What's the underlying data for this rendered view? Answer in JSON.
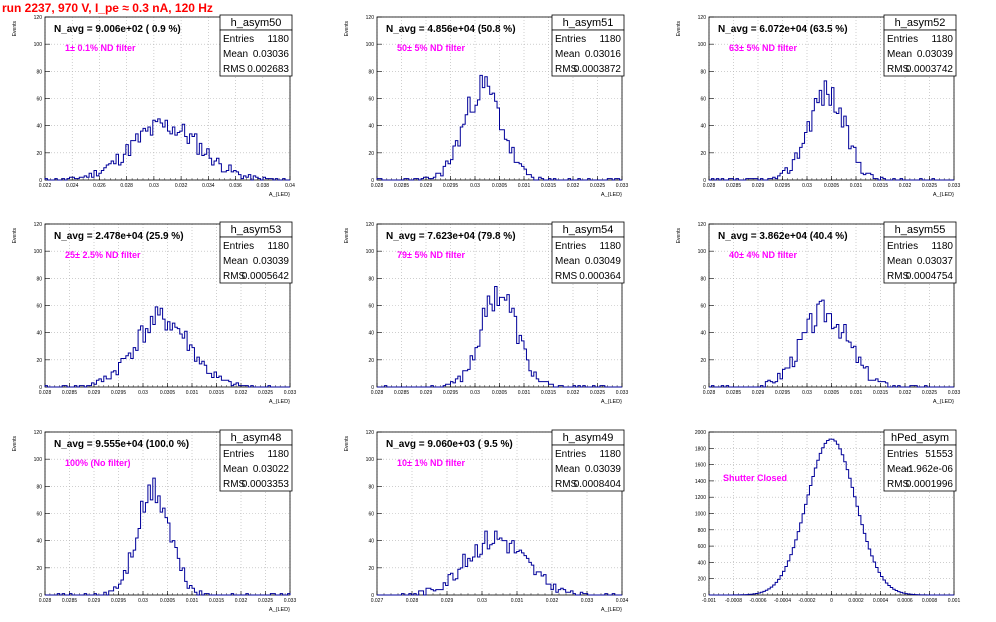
{
  "page": {
    "title": "run 2237,   970 V, I_pe ≈ 0.3 nA, 120 Hz"
  },
  "colors": {
    "histogram_line": "#000099",
    "title_text": "#ff0000",
    "annotation_text": "#ff00ff",
    "grid": "#b0b0b0",
    "frame": "#000000"
  },
  "chart_data": [
    {
      "type": "bar",
      "name": "h_asym50",
      "navg": "N_avg = 9.006e+02 ( 0.9 %)",
      "filter": "1± 0.1% ND filter",
      "ylabel": "Events",
      "xlabel": "A_{LED}",
      "stats": {
        "Entries": "1180",
        "Mean": "0.03036",
        "RMS": "0.002683"
      },
      "xlim": [
        0.021,
        0.04
      ],
      "ylim": [
        0,
        120
      ],
      "xticks": [
        "0.022",
        "0.024",
        "0.026",
        "0.028",
        "0.03",
        "0.032",
        "0.034",
        "0.036",
        "0.038",
        "0.04"
      ],
      "yticks": [
        "0",
        "20",
        "40",
        "60",
        "80",
        "100",
        "120"
      ],
      "mean": 0.03036,
      "rms": 0.002683,
      "peak": 40,
      "bins": 100,
      "seed": 11
    },
    {
      "type": "bar",
      "name": "h_asym51",
      "navg": "N_avg = 4.856e+04 (50.8 %)",
      "filter": "50± 5% ND filter",
      "ylabel": "Events",
      "xlabel": "A_{LED}",
      "stats": {
        "Entries": "1180",
        "Mean": "0.03016",
        "RMS": "0.0003872"
      },
      "xlim": [
        0.028,
        0.033
      ],
      "ylim": [
        0,
        120
      ],
      "xticks": [
        "0.028",
        "0.0285",
        "0.029",
        "0.0295",
        "0.03",
        "0.0305",
        "0.031",
        "0.0315",
        "0.032",
        "0.0325",
        "0.033"
      ],
      "yticks": [
        "0",
        "20",
        "40",
        "60",
        "80",
        "100",
        "120"
      ],
      "mean": 0.03016,
      "rms": 0.0003872,
      "peak": 68,
      "bins": 100,
      "seed": 23
    },
    {
      "type": "bar",
      "name": "h_asym52",
      "navg": "N_avg = 6.072e+04 (63.5 %)",
      "filter": "63± 5% ND filter",
      "ylabel": "Events",
      "xlabel": "A_{LED}",
      "stats": {
        "Entries": "1180",
        "Mean": "0.03039",
        "RMS": "0.0003742"
      },
      "xlim": [
        0.028,
        0.033
      ],
      "ylim": [
        0,
        120
      ],
      "xticks": [
        "0.028",
        "0.0285",
        "0.029",
        "0.0295",
        "0.03",
        "0.0305",
        "0.031",
        "0.0315",
        "0.032",
        "0.0325",
        "0.033"
      ],
      "yticks": [
        "0",
        "20",
        "40",
        "60",
        "80",
        "100",
        "120"
      ],
      "mean": 0.03039,
      "rms": 0.0003742,
      "peak": 65,
      "bins": 100,
      "seed": 37
    },
    {
      "type": "bar",
      "name": "h_asym53",
      "navg": "N_avg = 2.478e+04 (25.9 %)",
      "filter": "25± 2.5% ND filter",
      "ylabel": "Events",
      "xlabel": "A_{LED}",
      "stats": {
        "Entries": "1180",
        "Mean": "0.03039",
        "RMS": "0.0005642"
      },
      "xlim": [
        0.028,
        0.033
      ],
      "ylim": [
        0,
        120
      ],
      "xticks": [
        "0.028",
        "0.0285",
        "0.029",
        "0.0295",
        "0.03",
        "0.0305",
        "0.031",
        "0.0315",
        "0.032",
        "0.0325",
        "0.033"
      ],
      "yticks": [
        "0",
        "20",
        "40",
        "60",
        "80",
        "100",
        "120"
      ],
      "mean": 0.03039,
      "rms": 0.0005642,
      "peak": 50,
      "bins": 100,
      "seed": 41
    },
    {
      "type": "bar",
      "name": "h_asym54",
      "navg": "N_avg = 7.623e+04 (79.8 %)",
      "filter": "79± 5% ND filter",
      "ylabel": "Events",
      "xlabel": "A_{LED}",
      "stats": {
        "Entries": "1180",
        "Mean": "0.03049",
        "RMS": "0.000364"
      },
      "xlim": [
        0.028,
        0.033
      ],
      "ylim": [
        0,
        120
      ],
      "xticks": [
        "0.028",
        "0.0285",
        "0.029",
        "0.0295",
        "0.03",
        "0.0305",
        "0.031",
        "0.0315",
        "0.032",
        "0.0325",
        "0.033"
      ],
      "yticks": [
        "0",
        "20",
        "40",
        "60",
        "80",
        "100",
        "120"
      ],
      "mean": 0.03049,
      "rms": 0.000364,
      "peak": 70,
      "bins": 100,
      "seed": 53
    },
    {
      "type": "bar",
      "name": "h_asym55",
      "navg": "N_avg = 3.862e+04 (40.4 %)",
      "filter": "40± 4% ND filter",
      "ylabel": "Events",
      "xlabel": "A_{LED}",
      "stats": {
        "Entries": "1180",
        "Mean": "0.03037",
        "RMS": "0.0004754"
      },
      "xlim": [
        0.028,
        0.033
      ],
      "ylim": [
        0,
        120
      ],
      "xticks": [
        "0.028",
        "0.0285",
        "0.029",
        "0.0295",
        "0.03",
        "0.0305",
        "0.031",
        "0.0315",
        "0.032",
        "0.0325",
        "0.033"
      ],
      "yticks": [
        "0",
        "20",
        "40",
        "60",
        "80",
        "100",
        "120"
      ],
      "mean": 0.03037,
      "rms": 0.0004754,
      "peak": 55,
      "bins": 100,
      "seed": 67
    },
    {
      "type": "bar",
      "name": "h_asym48",
      "navg": "N_avg = 9.555e+04 (100.0 %)",
      "filter": "100% (No filter)",
      "ylabel": "Events",
      "xlabel": "A_{LED}",
      "stats": {
        "Entries": "1180",
        "Mean": "0.03022",
        "RMS": "0.0003353"
      },
      "xlim": [
        0.028,
        0.033
      ],
      "ylim": [
        0,
        120
      ],
      "xticks": [
        "0.028",
        "0.0285",
        "0.029",
        "0.0295",
        "0.03",
        "0.0305",
        "0.031",
        "0.0315",
        "0.032",
        "0.0325",
        "0.033"
      ],
      "yticks": [
        "0",
        "20",
        "40",
        "60",
        "80",
        "100",
        "120"
      ],
      "mean": 0.03022,
      "rms": 0.0003353,
      "peak": 76,
      "bins": 100,
      "seed": 71
    },
    {
      "type": "bar",
      "name": "h_asym49",
      "navg": "N_avg = 9.060e+03 ( 9.5 %)",
      "filter": "10± 1% ND filter",
      "ylabel": "Events",
      "xlabel": "A_{LED}",
      "stats": {
        "Entries": "1180",
        "Mean": "0.03039",
        "RMS": "0.0008404"
      },
      "xlim": [
        0.027,
        0.034
      ],
      "ylim": [
        0,
        120
      ],
      "xticks": [
        "0.027",
        "0.028",
        "0.029",
        "0.03",
        "0.031",
        "0.032",
        "0.033",
        "0.034"
      ],
      "yticks": [
        "0",
        "20",
        "40",
        "60",
        "80",
        "100",
        "120"
      ],
      "mean": 0.03039,
      "rms": 0.0008404,
      "peak": 42,
      "bins": 100,
      "seed": 83
    },
    {
      "type": "bar",
      "name": "hPed_asym",
      "navg": "",
      "filter": "Shutter Closed",
      "ylabel": "",
      "xlabel": "",
      "stats": {
        "Entries": "51553",
        "Mean": "-1.962e-06",
        "RMS": "0.0001996"
      },
      "xlim": [
        -0.001,
        0.001
      ],
      "ylim": [
        0,
        2100
      ],
      "xticks": [
        "-0.001",
        "-0.0008",
        "-0.0006",
        "-0.0004",
        "-0.0002",
        "0",
        "0.0002",
        "0.0004",
        "0.0006",
        "0.0008",
        "0.001"
      ],
      "yticks": [
        "0",
        "200",
        "400",
        "600",
        "800",
        "1000",
        "1200",
        "1400",
        "1600",
        "1800",
        "2000"
      ],
      "mean": -2e-06,
      "rms": 0.0001996,
      "peak": 2010,
      "bins": 100,
      "seed": 0
    }
  ]
}
